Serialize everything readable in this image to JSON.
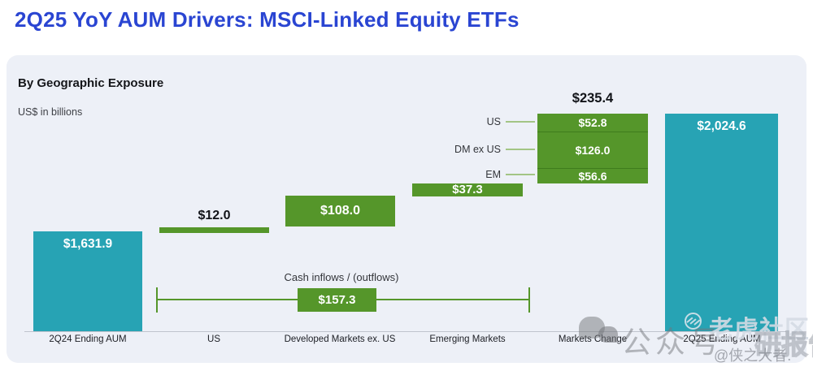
{
  "page_title": "2Q25 YoY AUM Drivers: MSCI-Linked Equity ETFs",
  "panel": {
    "subtitle": "By Geographic Exposure",
    "units": "US$ in billions"
  },
  "chart_data": {
    "type": "bar",
    "subtype": "waterfall",
    "title": "By Geographic Exposure",
    "units": "US$ in billions",
    "categories": [
      "2Q24 Ending AUM",
      "US",
      "Developed Markets ex. US",
      "Emerging Markets",
      "Markets Change",
      "2Q25 Ending AUM"
    ],
    "values": [
      1631.9,
      12.0,
      108.0,
      37.3,
      235.4,
      2024.6
    ],
    "value_labels": [
      "$1,631.9",
      "$12.0",
      "$108.0",
      "$37.3",
      "$235.4",
      "$2,024.6"
    ],
    "bar_roles": [
      "total",
      "flow",
      "flow",
      "flow",
      "market-change",
      "total"
    ],
    "markets_change_breakdown": {
      "total": 235.4,
      "total_label": "$235.4",
      "segments": [
        {
          "label": "US",
          "value": 52.8,
          "value_label": "$52.8"
        },
        {
          "label": "DM ex US",
          "value": 126.0,
          "value_label": "$126.0"
        },
        {
          "label": "EM",
          "value": 56.6,
          "value_label": "$56.6"
        }
      ]
    },
    "cash_flows_bracket": {
      "label": "Cash inflows / (outflows)",
      "total": 157.3,
      "total_label": "$157.3",
      "spans_categories": [
        "US",
        "Developed Markets ex. US",
        "Emerging Markets"
      ]
    },
    "colors": {
      "ending_aum_bars": "#27a3b4",
      "flow_bars": "#55962a",
      "title_accent": "#2a45d2",
      "panel_background": "#edf0f7"
    },
    "legend_position": "none",
    "grid": false
  },
  "watermarks": {
    "wechat_label": "公众号",
    "community_label": "老虎社区",
    "report_label": "研报告",
    "handle": "@侠之大者."
  }
}
